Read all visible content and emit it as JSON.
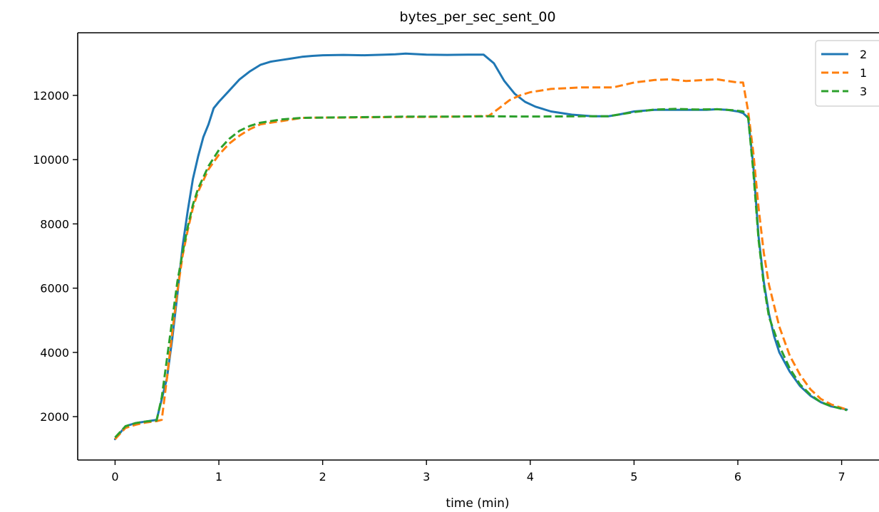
{
  "chart_data": {
    "type": "line",
    "title": "bytes_per_sec_sent_00",
    "xlabel": "time (min)",
    "ylabel": "",
    "xlim": [
      -0.36,
      7.36
    ],
    "ylim": [
      650,
      13950
    ],
    "xticks": [
      0,
      1,
      2,
      3,
      4,
      5,
      6,
      7
    ],
    "yticks": [
      2000,
      4000,
      6000,
      8000,
      10000,
      12000
    ],
    "grid": false,
    "legend_position": "top-right",
    "series": [
      {
        "name": "2",
        "color": "#1f77b4",
        "style": "solid",
        "x": [
          0.0,
          0.1,
          0.2,
          0.3,
          0.4,
          0.5,
          0.55,
          0.6,
          0.65,
          0.7,
          0.75,
          0.8,
          0.85,
          0.9,
          0.95,
          1.0,
          1.1,
          1.2,
          1.3,
          1.4,
          1.5,
          1.6,
          1.7,
          1.8,
          1.9,
          2.0,
          2.2,
          2.4,
          2.6,
          2.7,
          2.8,
          3.0,
          3.2,
          3.4,
          3.55,
          3.65,
          3.75,
          3.85,
          3.95,
          4.05,
          4.2,
          4.4,
          4.6,
          4.75,
          4.85,
          5.0,
          5.2,
          5.35,
          5.5,
          5.7,
          5.8,
          5.9,
          6.0,
          6.05,
          6.1,
          6.15,
          6.2,
          6.25,
          6.3,
          6.35,
          6.4,
          6.5,
          6.6,
          6.7,
          6.8,
          6.9,
          7.05
        ],
        "y": [
          1300,
          1700,
          1800,
          1850,
          1900,
          3200,
          4400,
          5800,
          7300,
          8400,
          9400,
          10100,
          10700,
          11100,
          11600,
          11800,
          12150,
          12500,
          12750,
          12950,
          13050,
          13100,
          13150,
          13200,
          13230,
          13250,
          13260,
          13250,
          13270,
          13280,
          13300,
          13270,
          13260,
          13270,
          13270,
          13000,
          12450,
          12050,
          11800,
          11650,
          11500,
          11400,
          11350,
          11350,
          11400,
          11500,
          11550,
          11550,
          11550,
          11550,
          11570,
          11550,
          11500,
          11450,
          11300,
          9800,
          7600,
          6200,
          5200,
          4500,
          4000,
          3400,
          2950,
          2650,
          2450,
          2320,
          2220
        ]
      },
      {
        "name": "1",
        "color": "#ff7f0e",
        "style": "dashed",
        "x": [
          0.0,
          0.1,
          0.2,
          0.3,
          0.4,
          0.45,
          0.5,
          0.55,
          0.6,
          0.65,
          0.7,
          0.75,
          0.8,
          0.9,
          1.0,
          1.1,
          1.2,
          1.3,
          1.4,
          1.6,
          1.8,
          2.0,
          2.2,
          2.5,
          2.8,
          3.0,
          3.3,
          3.6,
          3.7,
          3.8,
          3.9,
          4.0,
          4.2,
          4.5,
          4.8,
          5.0,
          5.2,
          5.35,
          5.5,
          5.8,
          5.9,
          6.0,
          6.05,
          6.1,
          6.15,
          6.2,
          6.25,
          6.3,
          6.4,
          6.5,
          6.6,
          6.7,
          6.8,
          6.9,
          7.05
        ],
        "y": [
          1300,
          1650,
          1750,
          1820,
          1860,
          1900,
          3200,
          4600,
          5900,
          7000,
          7800,
          8500,
          9000,
          9700,
          10150,
          10500,
          10750,
          10950,
          11100,
          11200,
          11300,
          11310,
          11310,
          11320,
          11330,
          11330,
          11340,
          11360,
          11600,
          11850,
          12000,
          12100,
          12200,
          12250,
          12250,
          12400,
          12480,
          12500,
          12450,
          12500,
          12450,
          12400,
          12400,
          11500,
          10200,
          8500,
          7100,
          6100,
          4800,
          3900,
          3300,
          2850,
          2550,
          2380,
          2220
        ]
      },
      {
        "name": "3",
        "color": "#2ca02c",
        "style": "dashed",
        "x": [
          0.0,
          0.1,
          0.2,
          0.3,
          0.4,
          0.45,
          0.5,
          0.55,
          0.6,
          0.65,
          0.7,
          0.75,
          0.8,
          0.9,
          1.0,
          1.1,
          1.2,
          1.3,
          1.4,
          1.6,
          1.8,
          2.0,
          2.3,
          2.6,
          2.8,
          3.0,
          3.3,
          3.6,
          4.0,
          4.5,
          4.75,
          5.0,
          5.2,
          5.4,
          5.6,
          5.8,
          5.95,
          6.05,
          6.1,
          6.15,
          6.2,
          6.25,
          6.3,
          6.4,
          6.5,
          6.6,
          6.7,
          6.8,
          6.9,
          7.05
        ],
        "y": [
          1350,
          1700,
          1800,
          1850,
          1880,
          2600,
          3800,
          5000,
          6200,
          7100,
          7900,
          8600,
          9100,
          9800,
          10300,
          10650,
          10900,
          11050,
          11150,
          11250,
          11300,
          11310,
          11320,
          11330,
          11340,
          11340,
          11340,
          11350,
          11340,
          11350,
          11350,
          11480,
          11560,
          11580,
          11560,
          11570,
          11540,
          11500,
          11300,
          9600,
          7500,
          6100,
          5100,
          4200,
          3500,
          3000,
          2680,
          2450,
          2330,
          2200
        ]
      }
    ]
  }
}
